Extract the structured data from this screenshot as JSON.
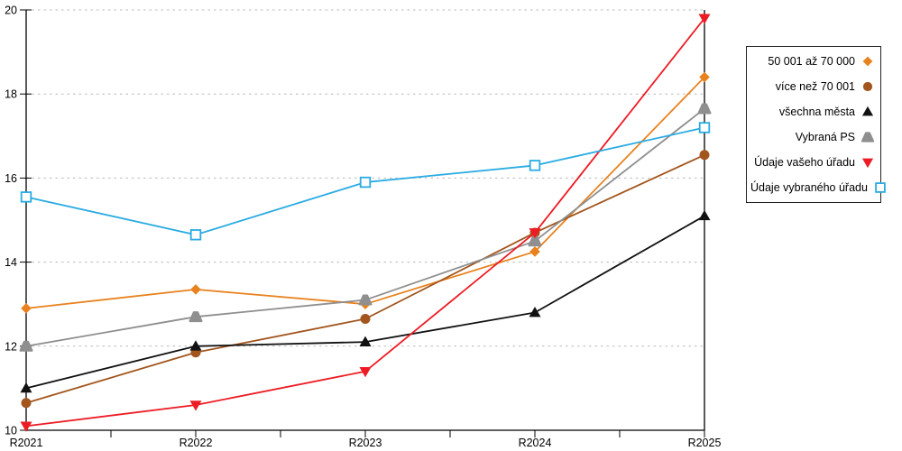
{
  "chart_data": {
    "type": "line",
    "title": "",
    "categories": [
      "R2021",
      "R2022",
      "R2023",
      "R2024",
      "R2025"
    ],
    "ylim": [
      10,
      20
    ],
    "y_axis": {
      "ticks": [
        10,
        12,
        14,
        16,
        18,
        20
      ]
    },
    "x_axis": {
      "labels": [
        "R2021",
        "R2022",
        "R2023",
        "R2024",
        "R2025"
      ],
      "minor_ticks_between_categories": true
    },
    "grid": "horizontal-dashed",
    "legend_position": "right",
    "series": [
      {
        "name": "50 001 až 70 000",
        "marker": "diamond",
        "color": "#E8821E",
        "values": [
          12.9,
          13.35,
          13.0,
          14.25,
          18.4
        ]
      },
      {
        "name": "více než 70 001",
        "marker": "circle",
        "color": "#A2551D",
        "values": [
          10.65,
          11.85,
          12.65,
          14.7,
          16.55
        ]
      },
      {
        "name": "všechna města",
        "marker": "triangle-up",
        "color": "#111111",
        "values": [
          11.0,
          12.0,
          12.1,
          12.8,
          15.1
        ]
      },
      {
        "name": "Vybraná PS",
        "marker": "pentagon",
        "color": "#8F8F8F",
        "values": [
          12.0,
          12.7,
          13.1,
          14.5,
          17.65
        ]
      },
      {
        "name": "Údaje vašeho úřadu",
        "marker": "triangle-down",
        "color": "#ED1C24",
        "values": [
          10.1,
          10.6,
          11.4,
          14.7,
          19.8
        ]
      },
      {
        "name": "Údaje vybraného úřadu",
        "marker": "square-open",
        "color": "#29ABE2",
        "values": [
          15.55,
          14.65,
          15.9,
          16.3,
          17.2
        ]
      }
    ],
    "colors": {
      "gridline": "#b8b8b8",
      "axis": "#000000",
      "background": "#ffffff"
    }
  }
}
